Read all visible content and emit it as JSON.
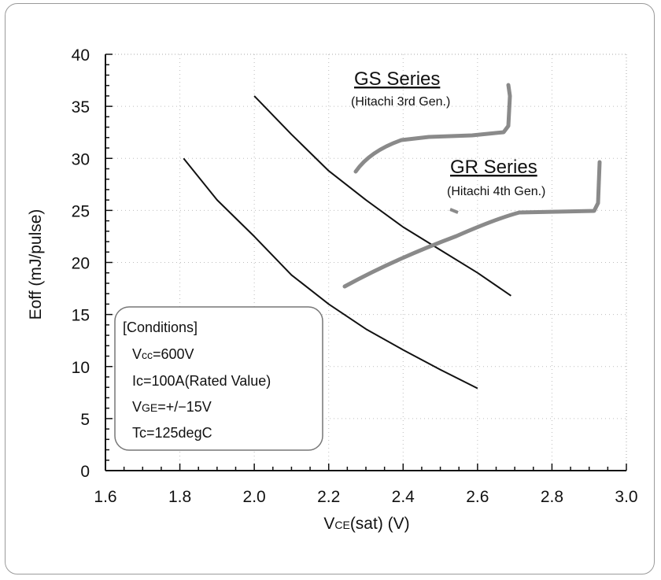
{
  "chart_data": {
    "type": "line",
    "xlabel": {
      "main": "V",
      "sub": "CE",
      "rest": "(sat)  (V)"
    },
    "ylabel": "Eoff (mJ/pulse)",
    "xlim": [
      1.6,
      3.0
    ],
    "ylim": [
      0,
      40
    ],
    "x_ticks": [
      "1.6",
      "1.8",
      "2.0",
      "2.2",
      "2.4",
      "2.6",
      "2.8",
      "3.0"
    ],
    "y_ticks": [
      "0",
      "5",
      "10",
      "15",
      "20",
      "25",
      "30",
      "35",
      "40"
    ],
    "grid": true,
    "series": [
      {
        "callout": {
          "title": "GS Series",
          "subtitle": "(Hitachi 3rd Gen.)"
        },
        "points": [
          [
            2.0,
            36.0
          ],
          [
            2.1,
            32.3
          ],
          [
            2.2,
            28.8
          ],
          [
            2.3,
            26.0
          ],
          [
            2.4,
            23.4
          ],
          [
            2.5,
            21.2
          ],
          [
            2.6,
            19.0
          ],
          [
            2.69,
            16.8
          ]
        ]
      },
      {
        "callout": {
          "title": "GR Series",
          "subtitle": "(Hitachi 4th Gen.)"
        },
        "points": [
          [
            1.81,
            30.0
          ],
          [
            1.9,
            26.0
          ],
          [
            2.0,
            22.5
          ],
          [
            2.1,
            18.8
          ],
          [
            2.2,
            16.0
          ],
          [
            2.3,
            13.6
          ],
          [
            2.4,
            11.6
          ],
          [
            2.5,
            9.7
          ],
          [
            2.6,
            7.9
          ]
        ]
      }
    ],
    "conditions": {
      "heading": "[Conditions]",
      "lines": [
        {
          "main": "V",
          "sub": "cc",
          "rest": "=600V"
        },
        {
          "main": "I",
          "sub": "c",
          "rest": "=100A(Rated Value)"
        },
        {
          "main": "V",
          "sub": "GE",
          "rest": "=+/−15V"
        },
        {
          "main": "T",
          "sub": "c",
          "rest": "=125degC"
        }
      ]
    }
  }
}
